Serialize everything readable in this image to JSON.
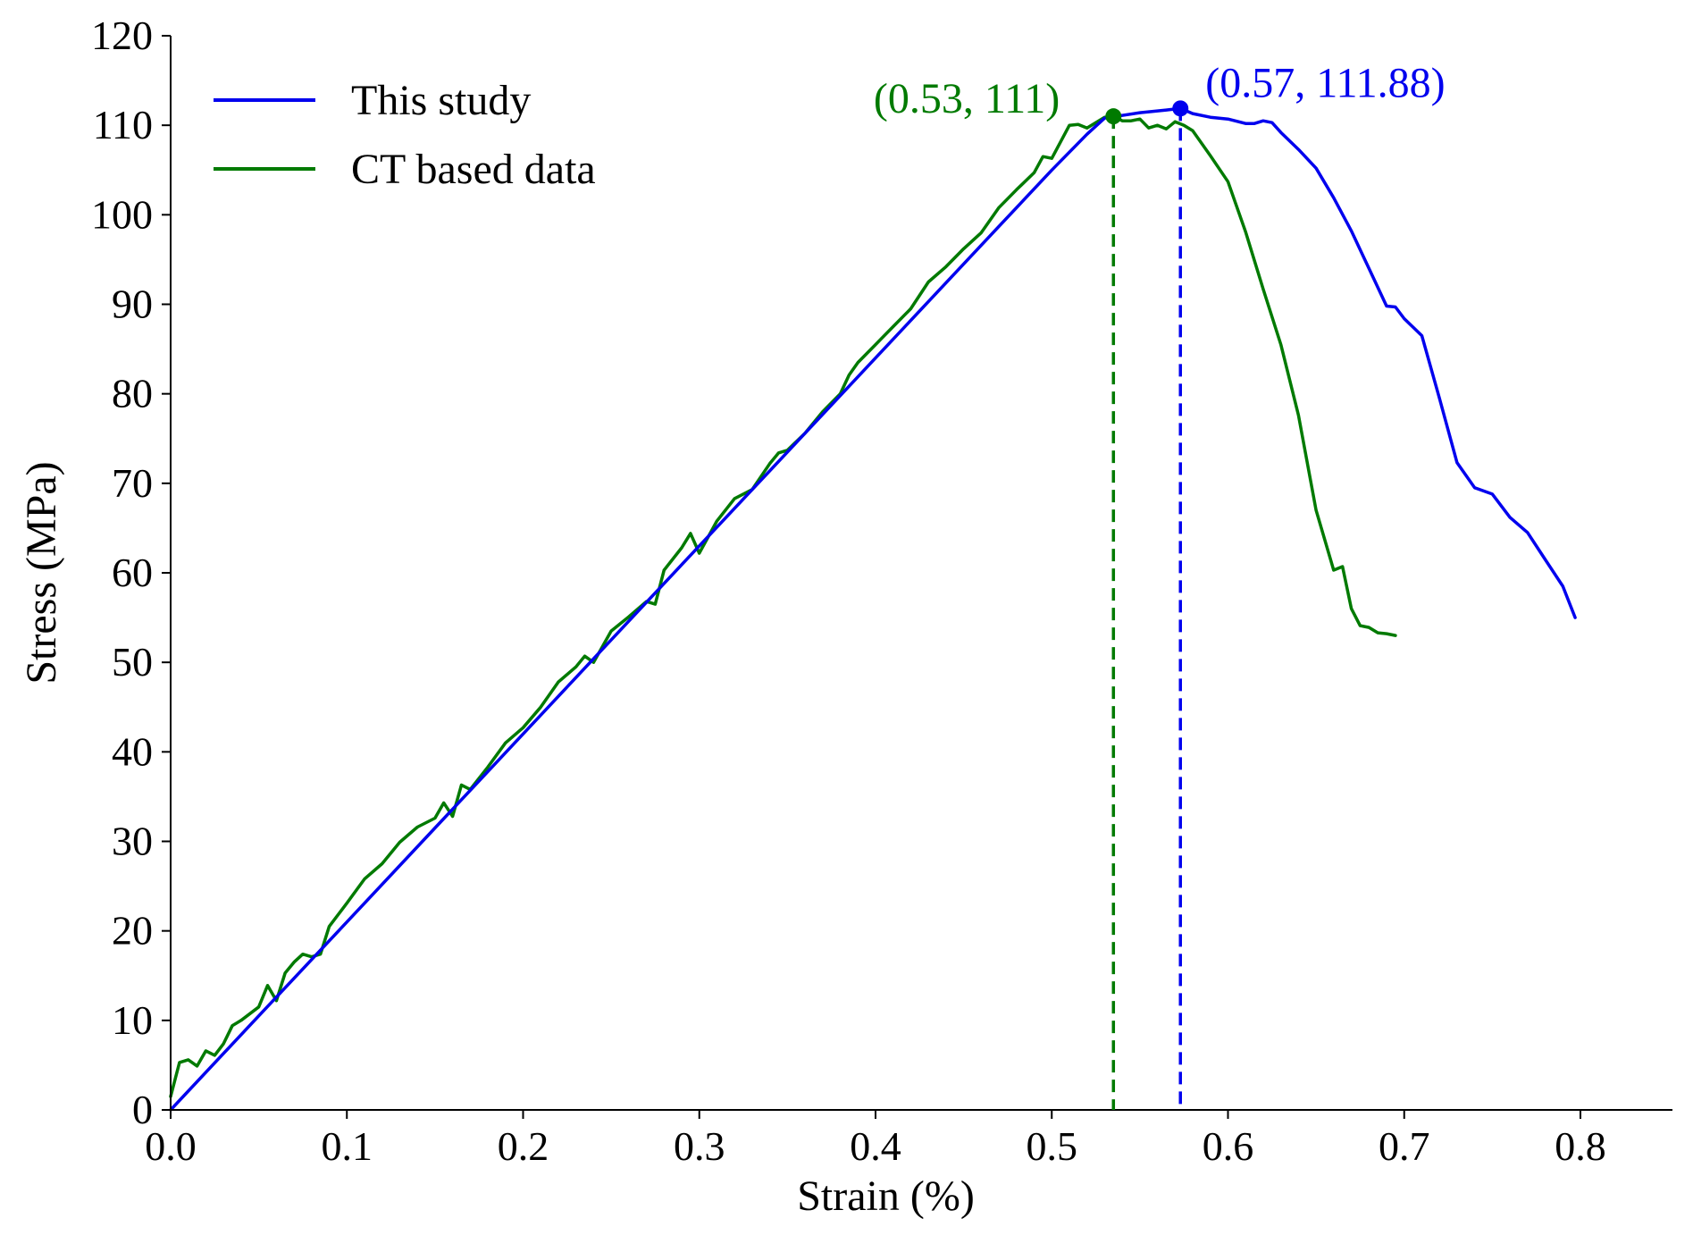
{
  "chart_data": {
    "type": "line",
    "title": "",
    "xlabel": "Strain (%)",
    "ylabel": "Stress (MPa)",
    "xlim": [
      0,
      0.85
    ],
    "ylim": [
      0,
      120
    ],
    "x_ticks": [
      0.0,
      0.1,
      0.2,
      0.3,
      0.4,
      0.5,
      0.6,
      0.7,
      0.8
    ],
    "x_tick_labels": [
      "0.0",
      "0.1",
      "0.2",
      "0.3",
      "0.4",
      "0.5",
      "0.6",
      "0.7",
      "0.8"
    ],
    "y_ticks": [
      0,
      10,
      20,
      30,
      40,
      50,
      60,
      70,
      80,
      90,
      100,
      110,
      120
    ],
    "y_tick_labels": [
      "0",
      "10",
      "20",
      "30",
      "40",
      "50",
      "60",
      "70",
      "80",
      "90",
      "100",
      "110",
      "120"
    ],
    "grid": false,
    "legend_position": "top-left",
    "series": [
      {
        "name": "This study",
        "color": "#0000ee",
        "x": [
          0,
          0.05,
          0.1,
          0.15,
          0.2,
          0.25,
          0.3,
          0.35,
          0.4,
          0.45,
          0.5,
          0.52,
          0.53,
          0.55,
          0.565,
          0.573,
          0.58,
          0.59,
          0.6,
          0.61,
          0.615,
          0.62,
          0.625,
          0.63,
          0.64,
          0.65,
          0.66,
          0.67,
          0.68,
          0.69,
          0.695,
          0.7,
          0.71,
          0.72,
          0.73,
          0.74,
          0.75,
          0.76,
          0.77,
          0.78,
          0.79,
          0.797
        ],
        "y": [
          0,
          10.5,
          21,
          31.5,
          42,
          52.5,
          63,
          73.5,
          84,
          94.5,
          105,
          109,
          110.8,
          111.4,
          111.7,
          111.88,
          111.3,
          110.9,
          110.7,
          110.2,
          110.2,
          110.5,
          110.3,
          109.2,
          107.3,
          105.2,
          101.9,
          98.2,
          94,
          89.8,
          89.7,
          88.4,
          86.5,
          79.5,
          72.3,
          69.5,
          68.8,
          66.2,
          64.5,
          61.5,
          58.5,
          55
        ]
      },
      {
        "name": "CT based data",
        "color": "#007a00",
        "x": [
          0,
          0.005,
          0.01,
          0.015,
          0.02,
          0.025,
          0.03,
          0.035,
          0.04,
          0.05,
          0.055,
          0.06,
          0.065,
          0.07,
          0.075,
          0.08,
          0.085,
          0.09,
          0.1,
          0.11,
          0.12,
          0.13,
          0.14,
          0.15,
          0.155,
          0.16,
          0.165,
          0.17,
          0.18,
          0.19,
          0.2,
          0.21,
          0.22,
          0.23,
          0.235,
          0.24,
          0.25,
          0.26,
          0.27,
          0.275,
          0.28,
          0.29,
          0.295,
          0.3,
          0.31,
          0.32,
          0.33,
          0.34,
          0.345,
          0.35,
          0.36,
          0.37,
          0.38,
          0.385,
          0.39,
          0.4,
          0.41,
          0.42,
          0.43,
          0.44,
          0.45,
          0.46,
          0.47,
          0.48,
          0.49,
          0.495,
          0.5,
          0.51,
          0.515,
          0.52,
          0.53,
          0.535,
          0.54,
          0.545,
          0.55,
          0.555,
          0.56,
          0.565,
          0.57,
          0.575,
          0.58,
          0.59,
          0.6,
          0.61,
          0.62,
          0.63,
          0.64,
          0.65,
          0.66,
          0.665,
          0.67,
          0.675,
          0.68,
          0.685,
          0.69,
          0.695
        ],
        "y": [
          1.5,
          5.3,
          5.6,
          4.9,
          6.6,
          6.1,
          7.4,
          9.4,
          10,
          11.5,
          13.9,
          12.2,
          15.3,
          16.5,
          17.4,
          17.1,
          17.4,
          20.5,
          23.1,
          25.8,
          27.5,
          29.9,
          31.6,
          32.6,
          34.3,
          32.8,
          36.3,
          35.8,
          38.3,
          41,
          42.7,
          45,
          47.8,
          49.5,
          50.7,
          50,
          53.5,
          55.1,
          56.8,
          56.5,
          60.3,
          62.8,
          64.4,
          62.2,
          65.8,
          68.3,
          69.3,
          72.2,
          73.4,
          73.7,
          75.6,
          78,
          80,
          82.1,
          83.5,
          85.5,
          87.5,
          89.5,
          92.5,
          94.2,
          96.2,
          98,
          100.8,
          102.8,
          104.7,
          106.5,
          106.3,
          110,
          110.1,
          109.7,
          110.9,
          111,
          110.5,
          110.5,
          110.7,
          109.7,
          110,
          109.6,
          110.4,
          110,
          109.4,
          106.6,
          103.7,
          98.1,
          91.7,
          85.5,
          77.6,
          67,
          60.3,
          60.7,
          56,
          54.1,
          53.9,
          53.3,
          53.2,
          53
        ]
      }
    ],
    "annotations": [
      {
        "series": "CT based data",
        "x": 0.535,
        "y": 111,
        "text": "(0.53, 111)",
        "color": "#007a00",
        "vertical_line_to_axis": true,
        "text_side": "left"
      },
      {
        "series": "This study",
        "x": 0.573,
        "y": 111.88,
        "text": "(0.57, 111.88)",
        "color": "#0000ee",
        "vertical_line_to_axis": true,
        "text_side": "right"
      }
    ]
  }
}
